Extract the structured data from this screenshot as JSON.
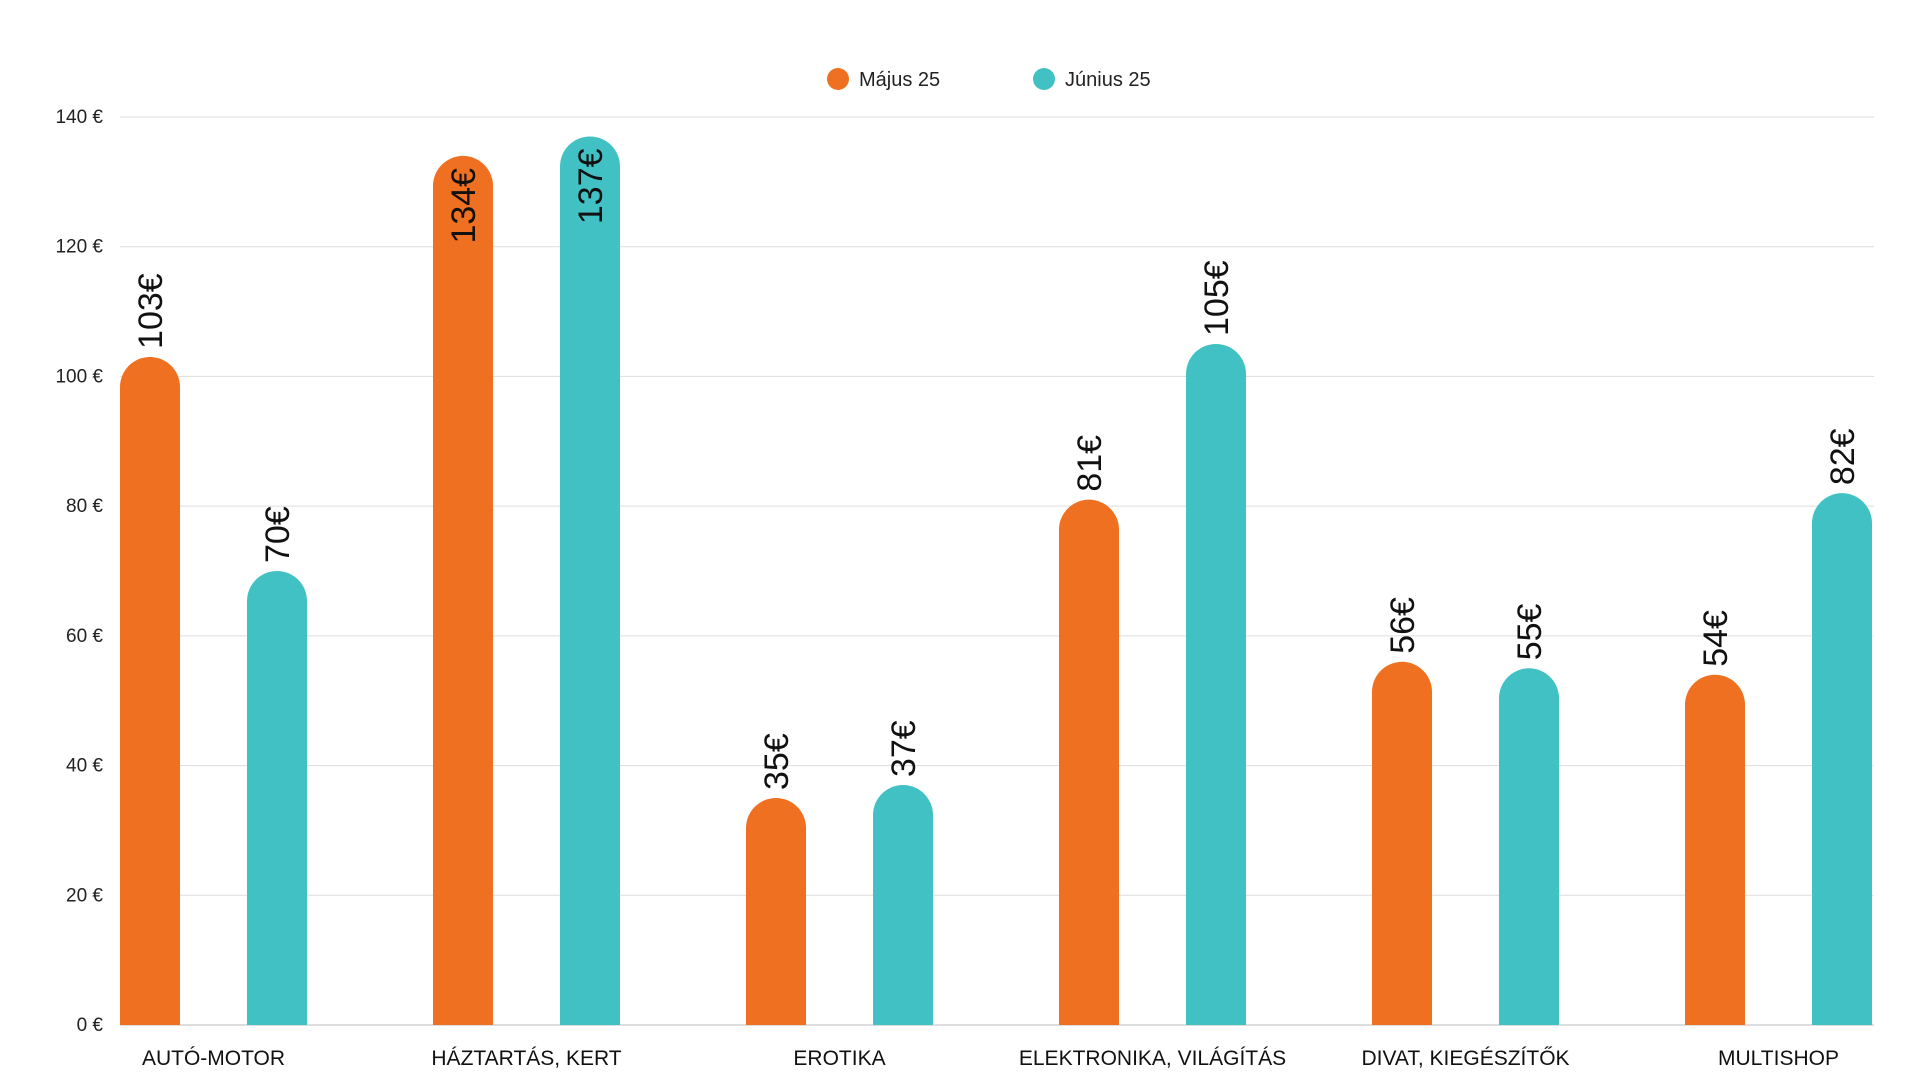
{
  "chart_data": {
    "type": "bar",
    "title": "",
    "xlabel": "",
    "ylabel": "",
    "ylim": [
      0,
      140
    ],
    "yticks": [
      0,
      20,
      40,
      60,
      80,
      100,
      120,
      140
    ],
    "ytick_suffix": " €",
    "grid": true,
    "legend_position": "top-center",
    "categories": [
      "AUTÓ-MOTOR",
      "HÁZTARTÁS, KERT",
      "EROTIKA",
      "ELEKTRONIKA, VILÁGÍTÁS",
      "DIVAT, KIEGÉSZÍTŐK",
      "MULTISHOP"
    ],
    "series": [
      {
        "name": "Május 25",
        "color": "#F07022",
        "values": [
          103,
          134,
          35,
          81,
          56,
          54
        ],
        "labels": [
          "103€",
          "134€",
          "35€",
          "81€",
          "56€",
          "54€"
        ]
      },
      {
        "name": "Június 25",
        "color": "#42C1C4",
        "values": [
          70,
          137,
          37,
          105,
          55,
          82
        ],
        "labels": [
          "70€",
          "137€",
          "37€",
          "105€",
          "55€",
          "82€"
        ]
      }
    ]
  }
}
